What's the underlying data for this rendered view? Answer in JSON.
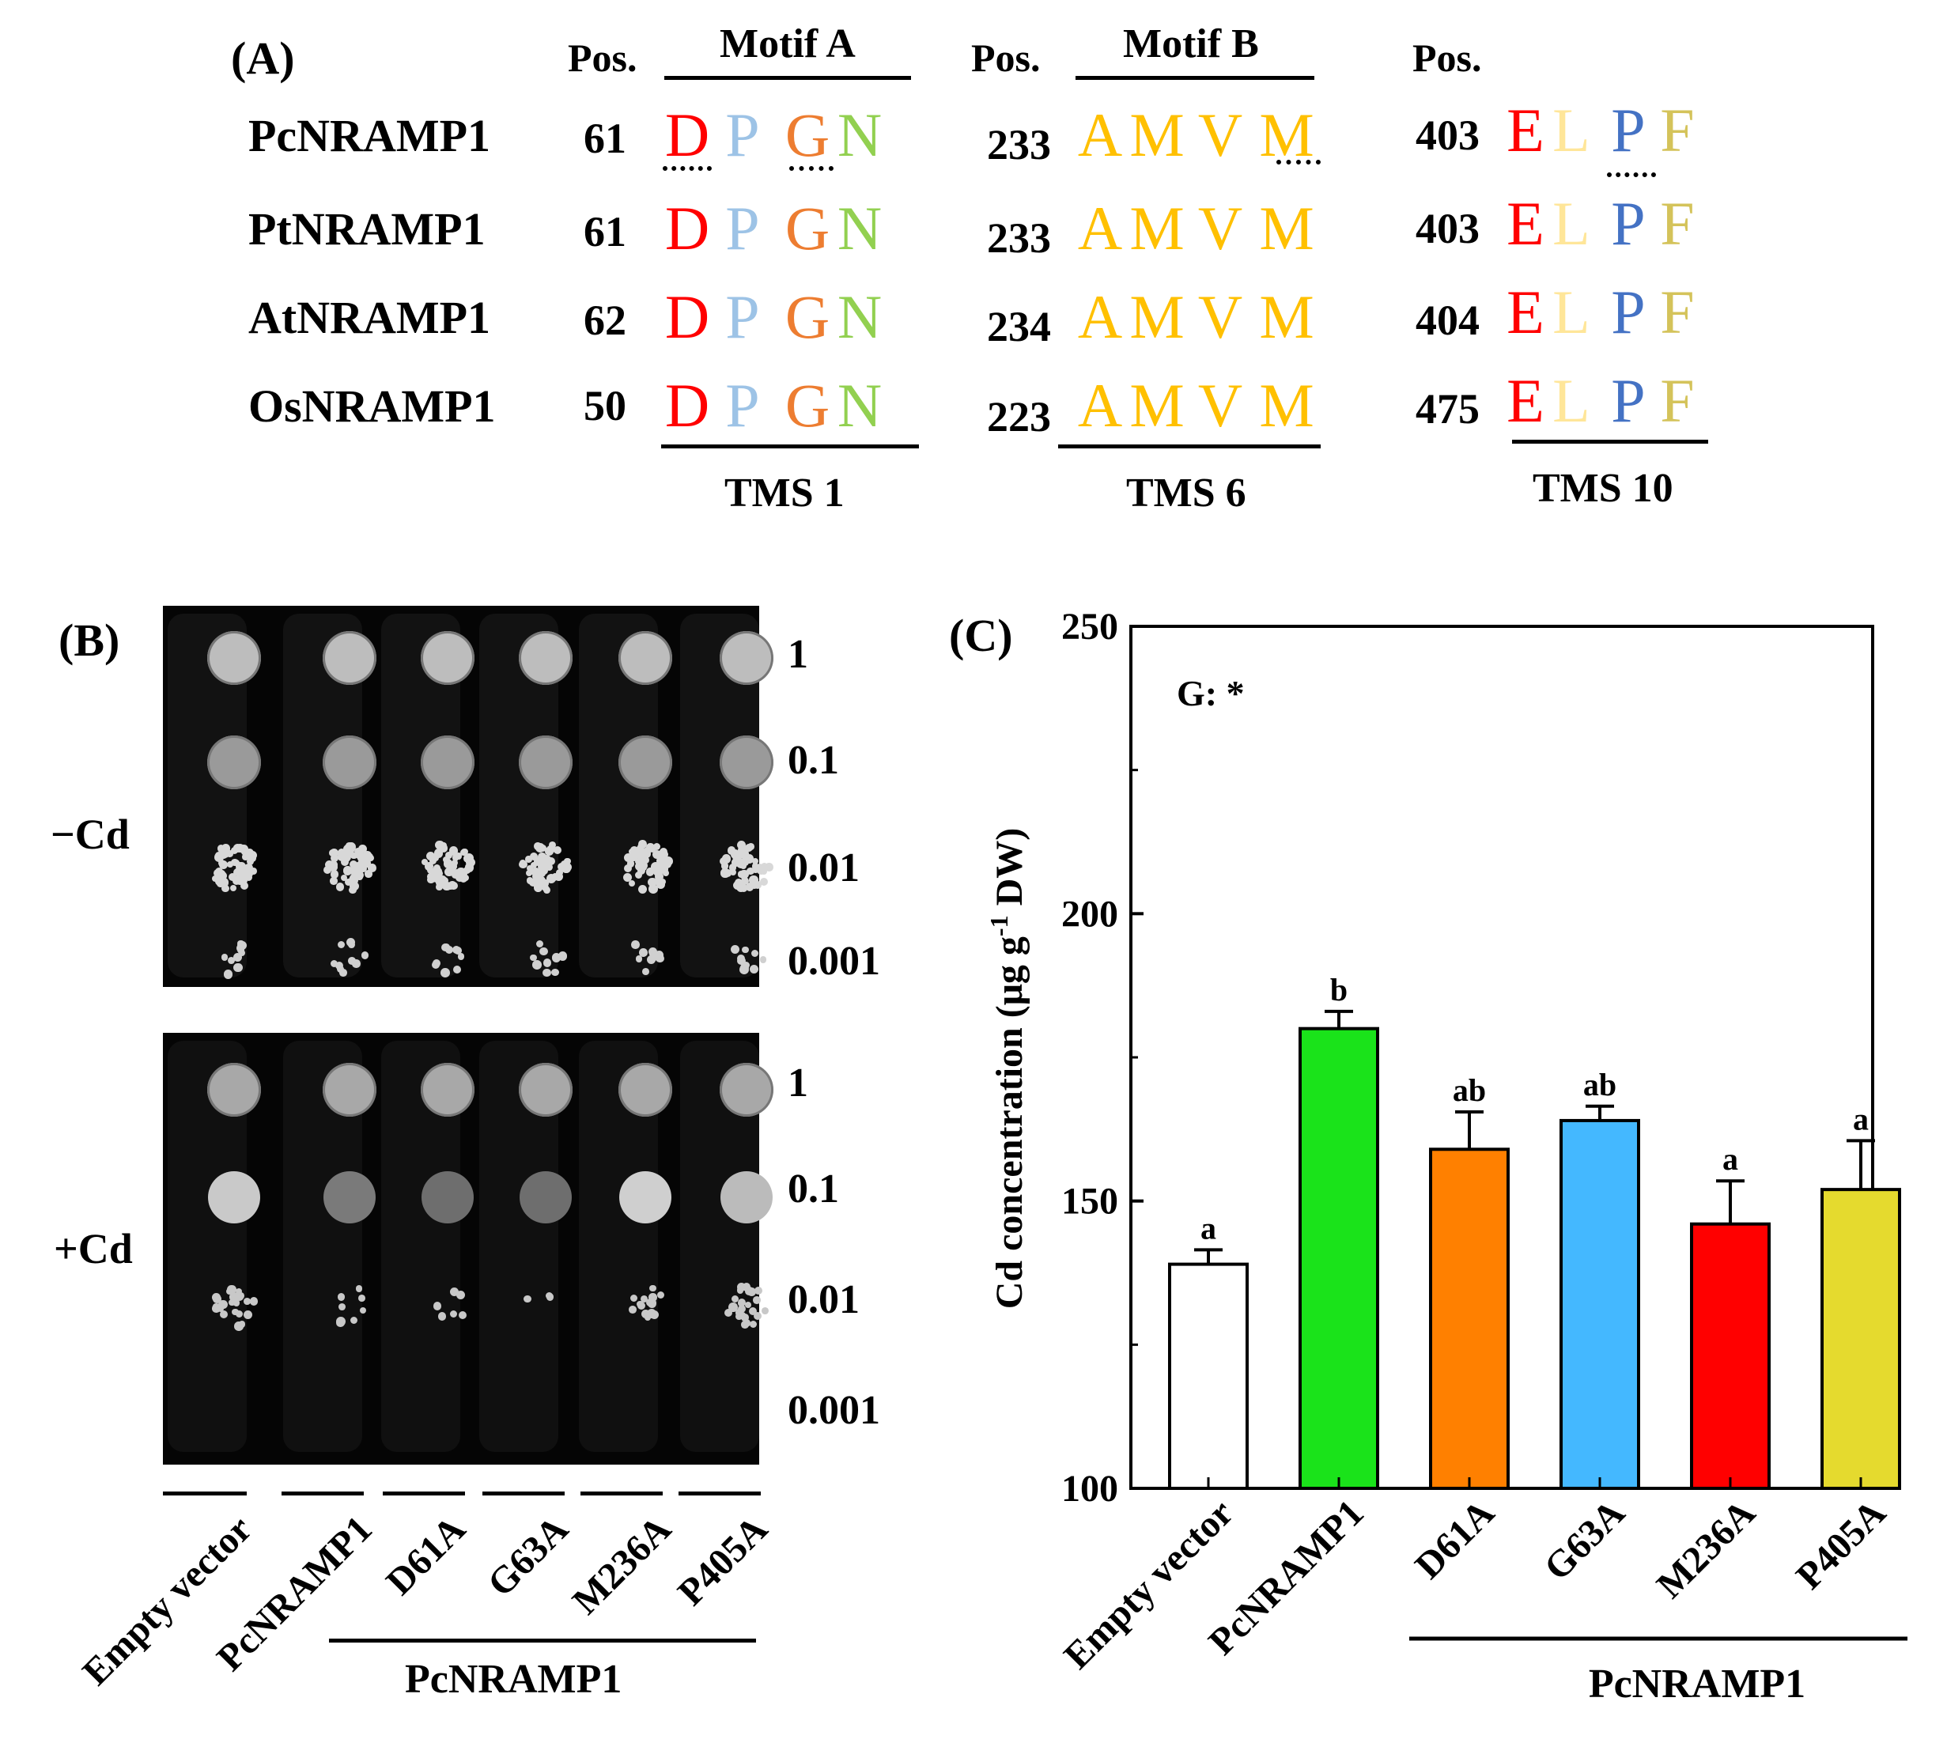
{
  "panelA": {
    "label": "(A)",
    "pos_header": "Pos.",
    "motifs": [
      {
        "name": "Motif A",
        "tms": "TMS 1"
      },
      {
        "name": "Motif B",
        "tms": "TMS 6"
      },
      {
        "name": "",
        "tms": "TMS 10"
      }
    ],
    "rows": [
      {
        "species": "PcNRAMP1",
        "pos": [
          "61",
          "233",
          "403"
        ]
      },
      {
        "species": "PtNRAMP1",
        "pos": [
          "61",
          "233",
          "403"
        ]
      },
      {
        "species": "AtNRAMP1",
        "pos": [
          "62",
          "234",
          "404"
        ]
      },
      {
        "species": "OsNRAMP1",
        "pos": [
          "50",
          "223",
          "475"
        ]
      }
    ],
    "residues": [
      [
        "D",
        "P",
        "G",
        "N"
      ],
      [
        "A",
        "M",
        "V",
        "M"
      ],
      [
        "E",
        "L",
        "P",
        "F"
      ]
    ],
    "residue_colors": [
      [
        "#ff0000",
        "#9dc3e6",
        "#ed7d31",
        "#92d050"
      ],
      [
        "#ffc000",
        "#ffc000",
        "#ffc000",
        "#ffc000"
      ],
      [
        "#ff0000",
        "#ffe699",
        "#4472c4",
        "#d4c35a"
      ]
    ]
  },
  "panelB": {
    "label": "(B)",
    "conditions": [
      "−Cd",
      "+Cd"
    ],
    "dilutions": [
      "1",
      "0.1",
      "0.01",
      "0.001"
    ],
    "strains": [
      "Empty vector",
      "PcNRAMP1",
      "D61A",
      "G63A",
      "M236A",
      "P405A"
    ],
    "group_label": "PcNRAMP1"
  },
  "panelC": {
    "label": "(C)",
    "annotation": "G: *",
    "group_label": "PcNRAMP1"
  },
  "chart_data": {
    "type": "bar",
    "title": "",
    "xlabel": "",
    "ylabel": "Cd concentration (μg g⁻¹ DW)",
    "ylabel_parts": {
      "main": "Cd concentration (μg g",
      "sup": "-1",
      "tail": " DW)"
    },
    "ylim": [
      100,
      250
    ],
    "yticks": [
      "100",
      "150",
      "200",
      "250"
    ],
    "categories": [
      "Empty vector",
      "PcNRAMP1",
      "D61A",
      "G63A",
      "M236A",
      "P405A"
    ],
    "values": [
      139,
      180,
      159,
      164,
      146,
      152
    ],
    "errors": [
      2.5,
      3,
      6.5,
      2.5,
      7.5,
      8.5
    ],
    "significance": [
      "a",
      "b",
      "ab",
      "ab",
      "a",
      "a"
    ],
    "colors": [
      "#ffffff",
      "#1ae31a",
      "#ff8000",
      "#44b8ff",
      "#ff0000",
      "#e5da2e"
    ]
  }
}
